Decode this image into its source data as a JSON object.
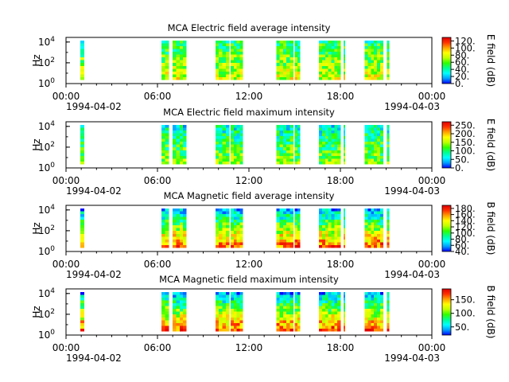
{
  "colors": {
    "colormap": [
      "#0000ff",
      "#00a0ff",
      "#00ffff",
      "#00ff90",
      "#30ff00",
      "#c0ff00",
      "#ffff00",
      "#ffa000",
      "#ff3000",
      "#e00000"
    ],
    "background": "#ffffff",
    "gap": "#ffffff"
  },
  "chart_data": [
    {
      "type": "heatmap",
      "title": "MCA  Electric field average intensity",
      "ylabel": "Hz",
      "y_scale": "log",
      "y_ticks": [
        {
          "base": "10",
          "exp": "0"
        },
        {
          "base": "10",
          "exp": "2"
        },
        {
          "base": "10",
          "exp": "4"
        }
      ],
      "x_ticks": [
        "00:00",
        "06:00",
        "12:00",
        "18:00",
        "00:00"
      ],
      "x_dates": [
        "1994-04-02",
        "1994-04-03"
      ],
      "colorbar_label": "E field (dB)",
      "colorbar_ticks": [
        "0.",
        "20.",
        "40.",
        "60.",
        "80.",
        "100.",
        "120."
      ],
      "colorbar_range": [
        0,
        130
      ],
      "data_intervals_hours": [
        [
          0.95,
          1.18
        ],
        [
          6.25,
          6.75
        ],
        [
          7.0,
          7.9
        ],
        [
          9.8,
          10.7
        ],
        [
          10.8,
          11.6
        ],
        [
          13.8,
          14.9
        ],
        [
          15.0,
          15.35
        ],
        [
          16.6,
          18.0
        ],
        [
          18.2,
          18.3
        ],
        [
          19.6,
          20.8
        ],
        [
          21.05,
          21.2
        ]
      ],
      "level_db": 65
    },
    {
      "type": "heatmap",
      "title": "MCA  Electric field maximum intensity",
      "ylabel": "Hz",
      "y_scale": "log",
      "y_ticks": [
        {
          "base": "10",
          "exp": "0"
        },
        {
          "base": "10",
          "exp": "2"
        },
        {
          "base": "10",
          "exp": "4"
        }
      ],
      "x_ticks": [
        "00:00",
        "06:00",
        "12:00",
        "18:00",
        "00:00"
      ],
      "x_dates": [
        "1994-04-02",
        "1994-04-03"
      ],
      "colorbar_label": "E field (dB)",
      "colorbar_ticks": [
        "0.",
        "50.",
        "100.",
        "150.",
        "200.",
        "250."
      ],
      "colorbar_range": [
        0,
        270
      ],
      "data_intervals_hours": [
        [
          0.95,
          1.18
        ],
        [
          6.25,
          6.75
        ],
        [
          7.0,
          7.9
        ],
        [
          9.8,
          10.7
        ],
        [
          10.8,
          11.6
        ],
        [
          13.8,
          14.9
        ],
        [
          15.0,
          15.35
        ],
        [
          16.6,
          18.0
        ],
        [
          18.2,
          18.3
        ],
        [
          19.6,
          20.8
        ],
        [
          21.05,
          21.2
        ]
      ],
      "level_db": 110
    },
    {
      "type": "heatmap",
      "title": "MCA  Magnetic field average intensity",
      "ylabel": "Hz",
      "y_scale": "log",
      "y_ticks": [
        {
          "base": "10",
          "exp": "0"
        },
        {
          "base": "10",
          "exp": "2"
        },
        {
          "base": "10",
          "exp": "4"
        }
      ],
      "x_ticks": [
        "00:00",
        "06:00",
        "12:00",
        "18:00",
        "00:00"
      ],
      "x_dates": [
        "1994-04-02",
        "1994-04-03"
      ],
      "colorbar_label": "B field (dB)",
      "colorbar_ticks": [
        "40.",
        "60.",
        "80.",
        "100.",
        "120.",
        "140.",
        "160.",
        "180."
      ],
      "colorbar_range": [
        40,
        190
      ],
      "data_intervals_hours": [
        [
          0.95,
          1.18
        ],
        [
          6.25,
          6.75
        ],
        [
          7.0,
          7.9
        ],
        [
          9.8,
          10.7
        ],
        [
          10.8,
          11.6
        ],
        [
          13.8,
          14.9
        ],
        [
          15.0,
          15.35
        ],
        [
          16.6,
          18.0
        ],
        [
          18.2,
          18.3
        ],
        [
          19.6,
          20.8
        ],
        [
          21.05,
          21.2
        ]
      ],
      "level_db": 110
    },
    {
      "type": "heatmap",
      "title": "MCA  Magnetic field maximum intensity",
      "ylabel": "Hz",
      "y_scale": "log",
      "y_ticks": [
        {
          "base": "10",
          "exp": "0"
        },
        {
          "base": "10",
          "exp": "2"
        },
        {
          "base": "10",
          "exp": "4"
        }
      ],
      "x_ticks": [
        "00:00",
        "06:00",
        "12:00",
        "18:00",
        "00:00"
      ],
      "x_dates": [
        "1994-04-02",
        "1994-04-03"
      ],
      "colorbar_label": "B field (dB)",
      "colorbar_ticks": [
        "50.",
        "100.",
        "150."
      ],
      "colorbar_range": [
        20,
        190
      ],
      "data_intervals_hours": [
        [
          0.95,
          1.18
        ],
        [
          6.25,
          6.75
        ],
        [
          7.0,
          7.9
        ],
        [
          9.8,
          10.7
        ],
        [
          10.8,
          11.6
        ],
        [
          13.8,
          14.9
        ],
        [
          15.0,
          15.35
        ],
        [
          16.6,
          18.0
        ],
        [
          18.2,
          18.3
        ],
        [
          19.6,
          20.8
        ],
        [
          21.05,
          21.2
        ]
      ],
      "level_db": 100
    }
  ]
}
